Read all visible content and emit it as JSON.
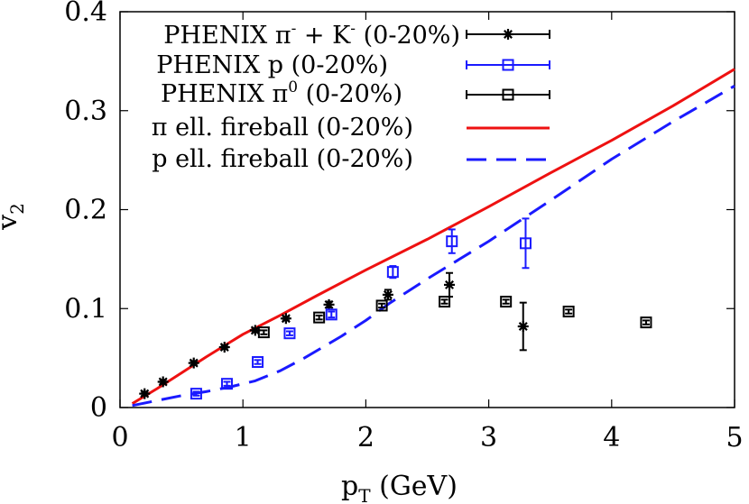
{
  "chart_data": {
    "type": "scatter",
    "xlabel": "p",
    "xlabel_sub": "T",
    "xlabel_unit": "(GeV)",
    "ylabel": "v",
    "ylabel_sub": "2",
    "xlim": [
      0,
      5
    ],
    "ylim": [
      0,
      0.4
    ],
    "xticks": [
      0,
      1,
      2,
      3,
      4,
      5
    ],
    "yticks": [
      0,
      0.1,
      0.2,
      0.3,
      0.4
    ],
    "xtick_labels": [
      "0",
      "1",
      "2",
      "3",
      "4",
      "5"
    ],
    "ytick_labels": [
      "0",
      "0.1",
      "0.2",
      "0.3",
      "0.4"
    ],
    "grid": false,
    "legend_position": "top-left",
    "series": [
      {
        "name": "PHENIX π- + K- (0-20%)",
        "label_main": "PHENIX π",
        "label_sup1": "-",
        "label_mid": " + K",
        "label_sup2": "-",
        "label_tail": " (0-20%)",
        "style": "points",
        "marker": "asterisk",
        "color": "#000000",
        "x": [
          0.2,
          0.35,
          0.6,
          0.85,
          1.1,
          1.35,
          1.7,
          2.18,
          2.68,
          3.28
        ],
        "y": [
          0.014,
          0.026,
          0.045,
          0.061,
          0.078,
          0.09,
          0.104,
          0.114,
          0.124,
          0.082
        ],
        "err": [
          0.002,
          0.002,
          0.002,
          0.002,
          0.002,
          0.002,
          0.003,
          0.005,
          0.012,
          0.024
        ]
      },
      {
        "name": "PHENIX p (0-20%)",
        "label_main": "PHENIX p (0-20%)",
        "style": "points",
        "marker": "open-square",
        "color": "#1a1aff",
        "x": [
          0.62,
          0.87,
          1.12,
          1.38,
          1.72,
          2.22,
          2.7,
          3.3
        ],
        "y": [
          0.014,
          0.024,
          0.046,
          0.075,
          0.094,
          0.137,
          0.168,
          0.166
        ],
        "err": [
          0.002,
          0.002,
          0.002,
          0.002,
          0.003,
          0.006,
          0.012,
          0.025
        ]
      },
      {
        "name": "PHENIX π0 (0-20%)",
        "label_main": "PHENIX π",
        "label_sup1": "0",
        "label_tail": " (0-20%)",
        "style": "points",
        "marker": "open-square",
        "color": "#000000",
        "x": [
          1.17,
          1.62,
          2.13,
          2.64,
          3.14,
          3.65,
          4.28
        ],
        "y": [
          0.076,
          0.091,
          0.103,
          0.107,
          0.107,
          0.097,
          0.086
        ],
        "err": [
          0.002,
          0.002,
          0.002,
          0.002,
          0.002,
          0.002,
          0.002
        ]
      },
      {
        "name": "π ell. fireball (0-20%)",
        "label_main": "π ell. fireball (0-20%)",
        "style": "solid",
        "color": "#ee1111",
        "x": [
          0.1,
          0.3,
          0.5,
          0.7,
          1.0,
          1.3,
          1.6,
          2.0,
          2.5,
          3.0,
          3.5,
          4.0,
          4.5,
          5.0
        ],
        "y": [
          0.004,
          0.019,
          0.035,
          0.051,
          0.074,
          0.093,
          0.113,
          0.139,
          0.17,
          0.203,
          0.237,
          0.27,
          0.305,
          0.342
        ]
      },
      {
        "name": "p ell. fireball (0-20%)",
        "label_main": "p ell. fireball (0-20%)",
        "style": "dashed",
        "color": "#1a1aff",
        "x": [
          0.1,
          0.3,
          0.5,
          0.7,
          0.9,
          1.1,
          1.3,
          1.5,
          1.8,
          2.0,
          2.2,
          2.5,
          3.0,
          3.5,
          4.0,
          4.5,
          5.0
        ],
        "y": [
          0.002,
          0.007,
          0.012,
          0.016,
          0.021,
          0.027,
          0.037,
          0.05,
          0.072,
          0.088,
          0.106,
          0.13,
          0.168,
          0.209,
          0.251,
          0.289,
          0.325
        ]
      }
    ]
  }
}
